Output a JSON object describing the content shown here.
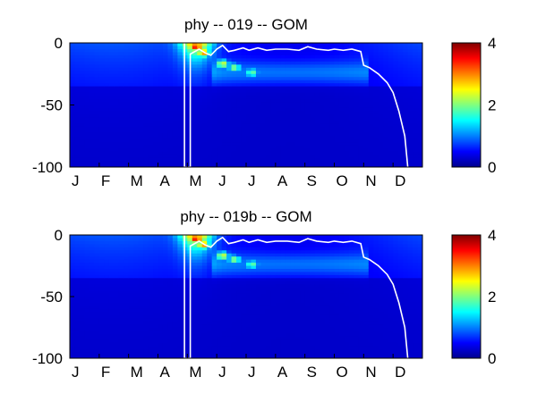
{
  "chart_data": [
    {
      "type": "heatmap",
      "title": "phy -- 019 -- GOM",
      "xlabel": "",
      "ylabel": "",
      "x_ticks": [
        "J",
        "F",
        "M",
        "A",
        "M",
        "J",
        "J",
        "A",
        "S",
        "O",
        "N",
        "D"
      ],
      "x_domain_month": [
        0,
        12
      ],
      "y_ticks": [
        "0",
        "-50",
        "-100"
      ],
      "y_values": [
        0,
        -50,
        -100
      ],
      "ylim": [
        -100,
        0
      ],
      "colorbar": {
        "ticks": [
          "0",
          "2",
          "4"
        ],
        "values": [
          0,
          2,
          4
        ],
        "clim": [
          0,
          4
        ],
        "colormap": "jet"
      },
      "bloom_peaks": [
        {
          "month": 4.3,
          "depth": -3,
          "value": 3.9
        },
        {
          "month": 4.55,
          "depth": -8,
          "value": 3.2
        },
        {
          "month": 5.2,
          "depth": -17,
          "value": 2.4
        },
        {
          "month": 5.6,
          "depth": -20,
          "value": 2.1
        },
        {
          "month": 6.2,
          "depth": -24,
          "value": 1.9
        }
      ],
      "white_contour": [
        [
          3.9,
          0
        ],
        [
          3.9,
          -100
        ],
        [
          4.1,
          -100
        ],
        [
          4.1,
          -9
        ],
        [
          4.4,
          -5
        ],
        [
          4.6,
          -8
        ],
        [
          4.8,
          -10
        ],
        [
          5.0,
          -5
        ],
        [
          5.2,
          -2
        ],
        [
          5.4,
          -7
        ],
        [
          5.6,
          -6
        ],
        [
          5.9,
          -4
        ],
        [
          6.1,
          -6
        ],
        [
          6.4,
          -4
        ],
        [
          6.7,
          -6
        ],
        [
          7.0,
          -5
        ],
        [
          7.4,
          -5
        ],
        [
          7.8,
          -6
        ],
        [
          8.1,
          -3
        ],
        [
          8.4,
          -5
        ],
        [
          8.8,
          -6
        ],
        [
          9.0,
          -5
        ],
        [
          9.3,
          -6
        ],
        [
          9.6,
          -5
        ],
        [
          9.9,
          -7
        ],
        [
          10.0,
          -18
        ],
        [
          10.2,
          -20
        ],
        [
          10.5,
          -25
        ],
        [
          10.8,
          -32
        ],
        [
          11.0,
          -40
        ],
        [
          11.2,
          -55
        ],
        [
          11.4,
          -75
        ],
        [
          11.5,
          -100
        ]
      ]
    },
    {
      "type": "heatmap",
      "title": "phy -- 019b -- GOM",
      "xlabel": "",
      "ylabel": "",
      "x_ticks": [
        "J",
        "F",
        "M",
        "A",
        "M",
        "J",
        "J",
        "A",
        "S",
        "O",
        "N",
        "D"
      ],
      "x_domain_month": [
        0,
        12
      ],
      "y_ticks": [
        "0",
        "-50",
        "-100"
      ],
      "y_values": [
        0,
        -50,
        -100
      ],
      "ylim": [
        -100,
        0
      ],
      "colorbar": {
        "ticks": [
          "0",
          "2",
          "4"
        ],
        "values": [
          0,
          2,
          4
        ],
        "clim": [
          0,
          4
        ],
        "colormap": "jet"
      },
      "bloom_peaks": [
        {
          "month": 4.3,
          "depth": -3,
          "value": 3.9
        },
        {
          "month": 4.55,
          "depth": -8,
          "value": 3.2
        },
        {
          "month": 5.2,
          "depth": -17,
          "value": 2.4
        },
        {
          "month": 5.6,
          "depth": -20,
          "value": 2.1
        },
        {
          "month": 6.2,
          "depth": -24,
          "value": 1.9
        }
      ],
      "white_contour": [
        [
          3.9,
          0
        ],
        [
          3.9,
          -100
        ],
        [
          4.1,
          -100
        ],
        [
          4.1,
          -9
        ],
        [
          4.4,
          -5
        ],
        [
          4.6,
          -8
        ],
        [
          4.8,
          -10
        ],
        [
          5.0,
          -5
        ],
        [
          5.2,
          -2
        ],
        [
          5.4,
          -7
        ],
        [
          5.6,
          -6
        ],
        [
          5.9,
          -4
        ],
        [
          6.1,
          -6
        ],
        [
          6.4,
          -4
        ],
        [
          6.7,
          -6
        ],
        [
          7.0,
          -5
        ],
        [
          7.4,
          -5
        ],
        [
          7.8,
          -6
        ],
        [
          8.1,
          -3
        ],
        [
          8.4,
          -5
        ],
        [
          8.8,
          -6
        ],
        [
          9.0,
          -5
        ],
        [
          9.3,
          -6
        ],
        [
          9.6,
          -5
        ],
        [
          9.9,
          -7
        ],
        [
          10.0,
          -18
        ],
        [
          10.2,
          -20
        ],
        [
          10.5,
          -25
        ],
        [
          10.8,
          -32
        ],
        [
          11.0,
          -40
        ],
        [
          11.2,
          -55
        ],
        [
          11.4,
          -75
        ],
        [
          11.5,
          -100
        ]
      ]
    }
  ]
}
